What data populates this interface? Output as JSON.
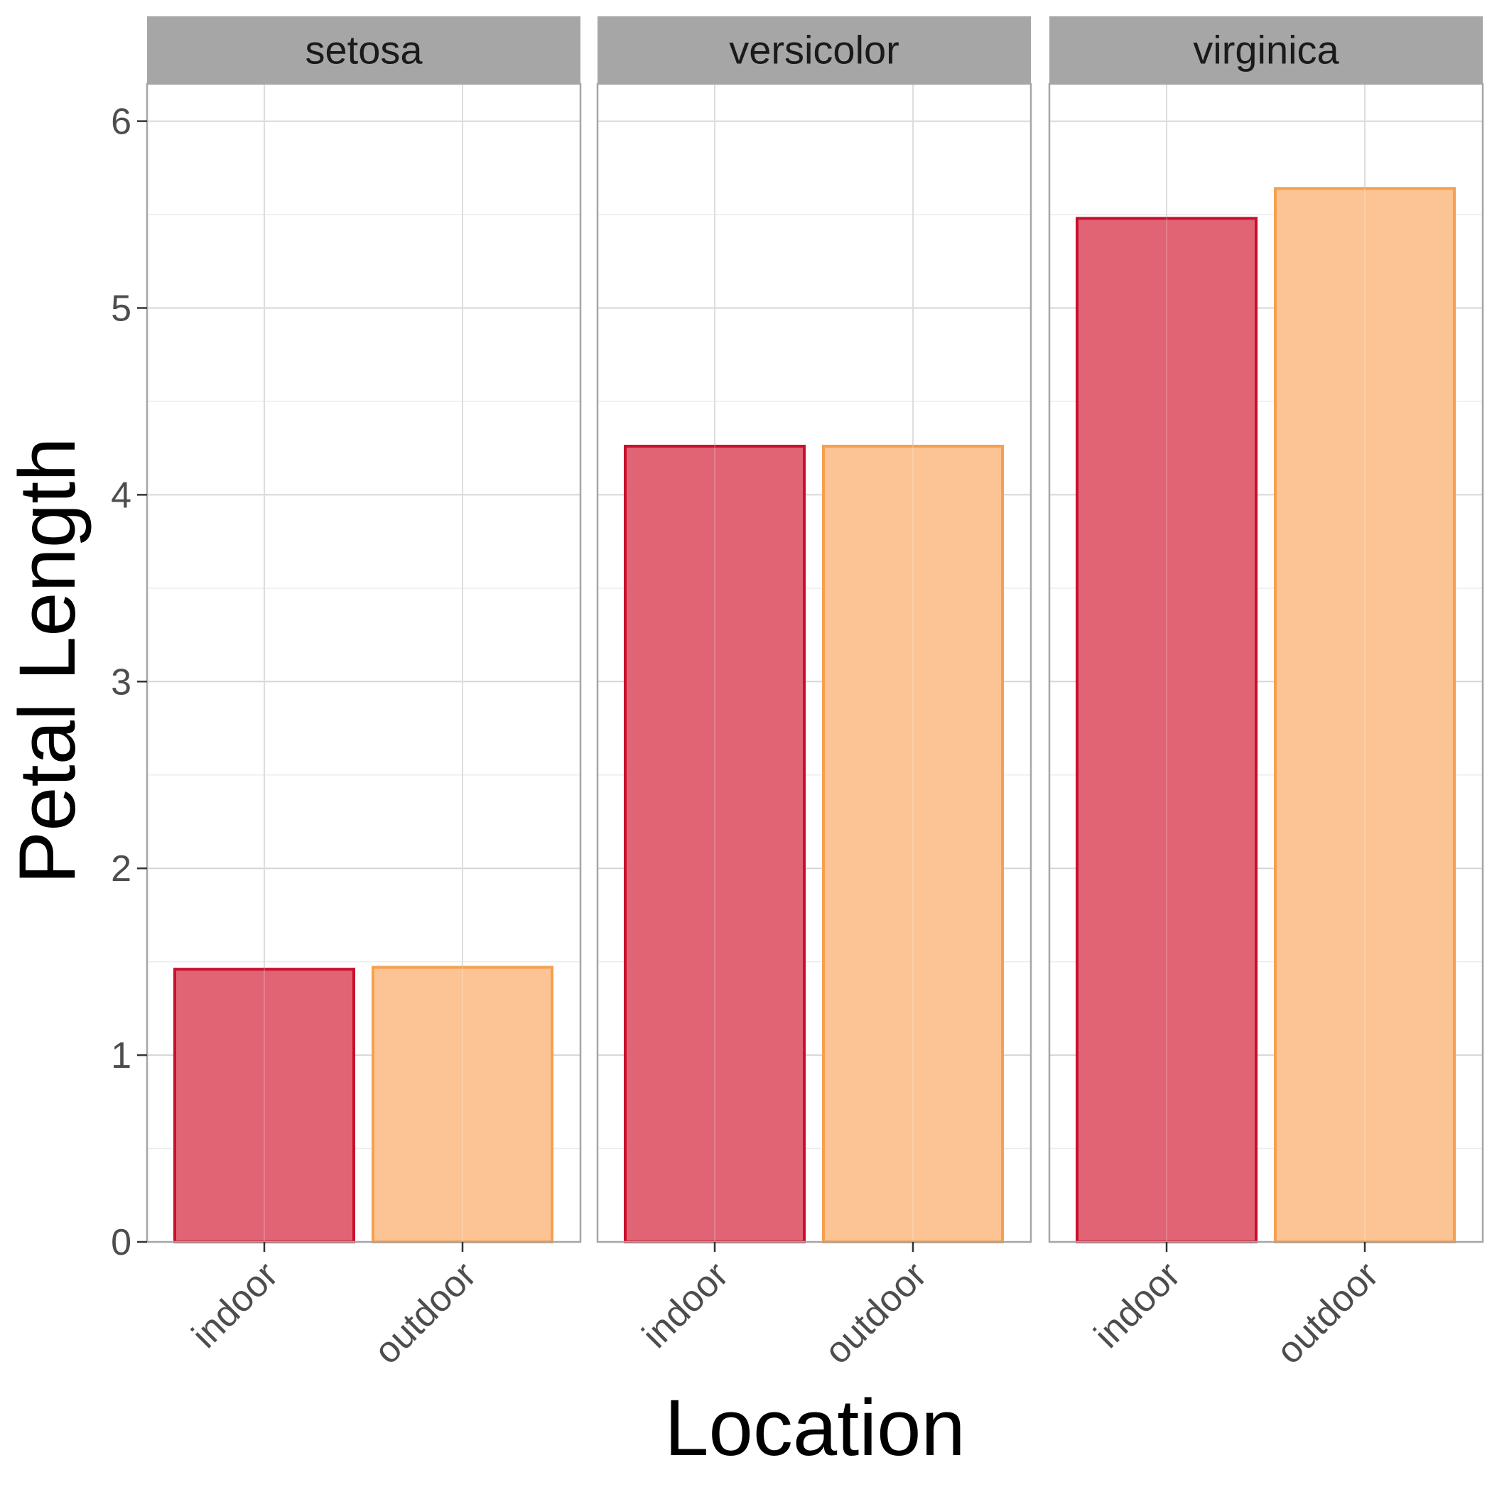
{
  "chart_data": {
    "type": "bar",
    "facet_by": "species",
    "xlabel": "Location",
    "ylabel": "Petal Length",
    "ylim": [
      0,
      6.2
    ],
    "y_ticks": [
      "0",
      "1",
      "2",
      "3",
      "4",
      "5",
      "6"
    ],
    "categories": [
      "indoor",
      "outdoor"
    ],
    "grid": true,
    "legend": "none",
    "colors": {
      "indoor_fill": "#e06474",
      "indoor_stroke": "#c8102e",
      "outdoor_fill": "#fcc494",
      "outdoor_stroke": "#f5a050",
      "strip_fill": "#a6a6a6",
      "panel_border": "#a6a6a6",
      "grid_major": "#d6d6d6",
      "grid_minor": "#ececec"
    },
    "panels": [
      {
        "title": "setosa",
        "values": [
          1.46,
          1.47
        ]
      },
      {
        "title": "versicolor",
        "values": [
          4.26,
          4.26
        ]
      },
      {
        "title": "virginica",
        "values": [
          5.48,
          5.64
        ]
      }
    ]
  }
}
